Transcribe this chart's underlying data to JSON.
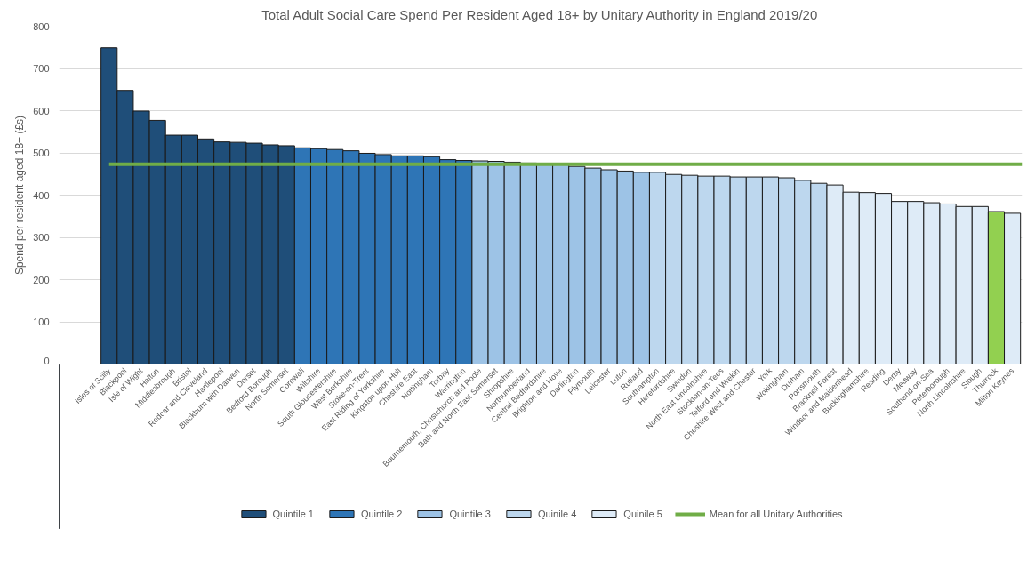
{
  "chart_data": {
    "type": "bar",
    "title": "Total Adult Social Care Spend Per Resident Aged 18+ by Unitary Authority in England 2019/20",
    "ylabel": "Spend per resident aged 18+ (£s)",
    "categories": [
      "Isles of Scilly",
      "Blackpool",
      "Isle of Wight",
      "Halton",
      "Middlesbrough",
      "Bristol",
      "Redcar and Cleveland",
      "Hartlepool",
      "Blackburn with Darwen",
      "Dorset",
      "Bedford Borough",
      "North Somerset",
      "Cornwall",
      "Wiltshire",
      "South Gloucestershire",
      "West Berkshire",
      "Stoke-on-Trent",
      "East Riding of Yorkshire",
      "Kingston upon Hull",
      "Cheshire East",
      "Nottingham",
      "Torbay",
      "Warrington",
      "Bournemouth, Christchurch and Poole",
      "Bath and North East Somerset",
      "Shropshire",
      "Northumberland",
      "Central Bedfordshire",
      "Brighton and Hove",
      "Darlington",
      "Plymouth",
      "Leicester",
      "Luton",
      "Rutland",
      "Southampton",
      "Herefordshire",
      "Swindon",
      "North East Lincolnshire",
      "Stockton-on-Tees",
      "Telford and Wrekin",
      "Cheshire West and Chester",
      "York",
      "Wokingham",
      "Durham",
      "Portsmouth",
      "Bracknell Forest",
      "Windsor and Maidenhead",
      "Buckinghamshire",
      "Reading",
      "Derby",
      "Medway",
      "Southend-on-Sea",
      "Peterborough",
      "North Lincolnshire",
      "Slough",
      "Thurrock",
      "Milton Keynes"
    ],
    "series": [
      {
        "name": "Quintile 1",
        "color": "#1f4e79",
        "values": [
          749,
          648,
          599,
          577,
          542,
          542,
          533,
          526,
          525,
          523,
          519,
          517,
          null,
          null,
          null,
          null,
          null,
          null,
          null,
          null,
          null,
          null,
          null,
          null,
          null,
          null,
          null,
          null,
          null,
          null,
          null,
          null,
          null,
          null,
          null,
          null,
          null,
          null,
          null,
          null,
          null,
          null,
          null,
          null,
          null,
          null,
          null,
          null,
          null,
          null,
          null,
          null,
          null,
          null,
          null,
          null,
          null
        ]
      },
      {
        "name": "Quintile 2",
        "color": "#2e75b6",
        "values": [
          null,
          null,
          null,
          null,
          null,
          null,
          null,
          null,
          null,
          null,
          null,
          null,
          512,
          510,
          508,
          505,
          499,
          496,
          493,
          493,
          491,
          484,
          482,
          null,
          null,
          null,
          null,
          null,
          null,
          null,
          null,
          null,
          null,
          null,
          null,
          null,
          null,
          null,
          null,
          null,
          null,
          null,
          null,
          null,
          null,
          null,
          null,
          null,
          null,
          null,
          null,
          null,
          null,
          null,
          null,
          null,
          null
        ]
      },
      {
        "name": "Quintile 3",
        "color": "#9dc3e6",
        "values": [
          null,
          null,
          null,
          null,
          null,
          null,
          null,
          null,
          null,
          null,
          null,
          null,
          null,
          null,
          null,
          null,
          null,
          null,
          null,
          null,
          null,
          null,
          null,
          481,
          480,
          478,
          476,
          474,
          473,
          468,
          464,
          460,
          457,
          454,
          null,
          null,
          null,
          null,
          null,
          null,
          null,
          null,
          null,
          null,
          null,
          null,
          null,
          null,
          null,
          null,
          null,
          null,
          null,
          null,
          null,
          null,
          null
        ]
      },
      {
        "name": "Quinile 4",
        "color": "#bdd7ee",
        "values": [
          null,
          null,
          null,
          null,
          null,
          null,
          null,
          null,
          null,
          null,
          null,
          null,
          null,
          null,
          null,
          null,
          null,
          null,
          null,
          null,
          null,
          null,
          null,
          null,
          null,
          null,
          null,
          null,
          null,
          null,
          null,
          null,
          null,
          null,
          454,
          449,
          447,
          445,
          445,
          443,
          443,
          443,
          441,
          435,
          428,
          null,
          null,
          null,
          null,
          null,
          null,
          null,
          null,
          null,
          null,
          null,
          null
        ]
      },
      {
        "name": "Quinile 5",
        "color": "#deebf7",
        "colors": [
          null,
          null,
          null,
          null,
          null,
          null,
          null,
          null,
          null,
          null,
          null,
          null,
          null,
          null,
          null,
          null,
          null,
          null,
          null,
          null,
          null,
          null,
          null,
          null,
          null,
          null,
          null,
          null,
          null,
          null,
          null,
          null,
          null,
          null,
          null,
          null,
          null,
          null,
          null,
          null,
          null,
          null,
          null,
          null,
          null,
          null,
          null,
          null,
          null,
          null,
          null,
          null,
          null,
          null,
          null,
          "#92d050",
          null
        ],
        "values": [
          null,
          null,
          null,
          null,
          null,
          null,
          null,
          null,
          null,
          null,
          null,
          null,
          null,
          null,
          null,
          null,
          null,
          null,
          null,
          null,
          null,
          null,
          null,
          null,
          null,
          null,
          null,
          null,
          null,
          null,
          null,
          null,
          null,
          null,
          null,
          null,
          null,
          null,
          null,
          null,
          null,
          null,
          null,
          null,
          null,
          424,
          407,
          406,
          404,
          385,
          385,
          382,
          379,
          373,
          373,
          361,
          357
        ]
      }
    ],
    "ref_lines": [
      {
        "axis": "y",
        "value": 473,
        "label": "Mean for all Unitary Authorities",
        "color": "#70ad47"
      }
    ],
    "ylim": [
      0,
      800
    ],
    "yticks": [
      0,
      100,
      200,
      300,
      400,
      500,
      600,
      700,
      800
    ],
    "grid": "y",
    "legend": "bottom"
  }
}
